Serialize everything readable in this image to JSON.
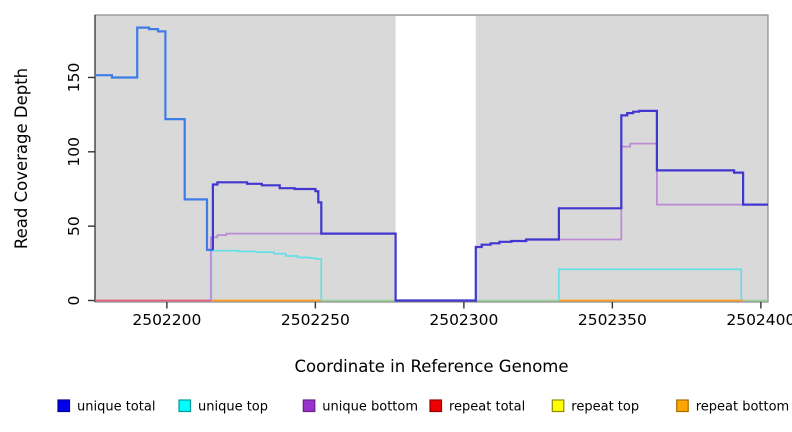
{
  "chart_data": {
    "type": "line",
    "subtype": "step-coverage-plot",
    "title": "",
    "xlabel": "Coordinate in Reference Genome",
    "ylabel": "Read Coverage Depth",
    "xlim": [
      2502175.8,
      2502402.4
    ],
    "ylim": [
      0,
      192
    ],
    "x_ticks": [
      2502200,
      2502250,
      2502300,
      2502350,
      2502400
    ],
    "x_tick_labels": [
      "2502200",
      "2502250",
      "2502300",
      "2502350",
      "2502400"
    ],
    "y_ticks": [
      0,
      50,
      100,
      150
    ],
    "y_tick_labels": [
      "0",
      "50",
      "100",
      "150"
    ],
    "grid": false,
    "figure_background": "#ffffff",
    "plot_background": "#d9d9d9",
    "box_color": "#8a8a8a",
    "axis_color": "#333333",
    "tick_color": "#333333",
    "masked_region": {
      "x_start": 2502277,
      "x_end": 2502304,
      "color": "#ffffff"
    },
    "series": [
      {
        "name": "repeat-total-zero",
        "legend": "repeat total",
        "color": "#e25e7e",
        "width": 1.8,
        "points": [
          [
            2502175.8,
            0
          ],
          [
            2502215,
            0
          ]
        ]
      },
      {
        "name": "repeat-bottom-zero-a",
        "legend": "repeat bottom",
        "color": "#ff9c20",
        "width": 1.8,
        "points": [
          [
            2502215,
            0
          ],
          [
            2502252,
            0
          ]
        ]
      },
      {
        "name": "zero-overlap-a",
        "legend": "",
        "color": "#95d295",
        "width": 1.6,
        "points": [
          [
            2502252,
            0
          ],
          [
            2502277,
            0
          ]
        ]
      },
      {
        "name": "zero-overlap-b",
        "legend": "",
        "color": "#95d295",
        "width": 1.6,
        "points": [
          [
            2502304,
            0
          ],
          [
            2502332,
            0
          ]
        ]
      },
      {
        "name": "repeat-bottom-zero-b",
        "legend": "repeat bottom",
        "color": "#ff9c20",
        "width": 1.8,
        "points": [
          [
            2502332,
            0
          ],
          [
            2502394,
            0
          ]
        ]
      },
      {
        "name": "zero-overlap-c",
        "legend": "",
        "color": "#95d295",
        "width": 1.6,
        "points": [
          [
            2502394,
            0
          ],
          [
            2502402.4,
            0
          ]
        ]
      },
      {
        "name": "unique-top-left",
        "legend": "unique top",
        "color": "#5fe0e8",
        "width": 1.6,
        "points": [
          [
            2502215,
            0
          ],
          [
            2502215,
            33.5
          ],
          [
            2502224,
            33
          ],
          [
            2502230,
            32.5
          ],
          [
            2502236,
            31.5
          ],
          [
            2502240,
            30
          ],
          [
            2502244,
            29
          ],
          [
            2502248,
            28.5
          ],
          [
            2502250,
            28
          ],
          [
            2502252,
            0
          ]
        ]
      },
      {
        "name": "unique-top-right",
        "legend": "unique top",
        "color": "#5fe0e8",
        "width": 1.6,
        "points": [
          [
            2502332,
            0
          ],
          [
            2502332,
            21
          ],
          [
            2502393.4,
            0
          ]
        ]
      },
      {
        "name": "unique-bottom",
        "legend": "unique bottom",
        "color": "#ba8ad5",
        "width": 1.7,
        "points": [
          [
            2502214.8,
            0
          ],
          [
            2502214.8,
            42.5
          ],
          [
            2502217,
            44
          ],
          [
            2502220,
            45
          ],
          [
            2502277,
            0
          ],
          [
            2502304,
            36
          ],
          [
            2502306,
            37.5
          ],
          [
            2502309,
            38.5
          ],
          [
            2502312,
            39.5
          ],
          [
            2502316,
            40
          ],
          [
            2502321,
            41
          ],
          [
            2502353,
            103.5
          ],
          [
            2502356,
            105.5
          ],
          [
            2502365,
            64.5
          ],
          [
            2502402.4,
            64.5
          ]
        ]
      },
      {
        "name": "unique-total-left",
        "legend": "unique total",
        "color": "#3e7ce8",
        "width": 2.2,
        "points": [
          [
            2502175.8,
            151.5
          ],
          [
            2502181.5,
            150
          ],
          [
            2502190,
            183.5
          ],
          [
            2502194,
            182.5
          ],
          [
            2502197,
            181
          ],
          [
            2502199.5,
            122
          ],
          [
            2502206,
            68
          ],
          [
            2502213.5,
            34
          ],
          [
            2502215.5,
            34
          ]
        ]
      },
      {
        "name": "unique-total-main",
        "legend": "unique total",
        "color": "#4136d0",
        "width": 2.2,
        "points": [
          [
            2502215.5,
            34
          ],
          [
            2502215.5,
            78
          ],
          [
            2502217,
            79.5
          ],
          [
            2502227,
            78.5
          ],
          [
            2502232,
            77.5
          ],
          [
            2502238,
            75.5
          ],
          [
            2502243,
            75
          ],
          [
            2502250,
            73.5
          ],
          [
            2502251,
            66
          ],
          [
            2502252,
            45
          ],
          [
            2502277,
            0
          ],
          [
            2502304,
            36
          ],
          [
            2502306,
            37.5
          ],
          [
            2502309,
            38.5
          ],
          [
            2502312,
            39.5
          ],
          [
            2502316,
            40
          ],
          [
            2502321,
            41
          ],
          [
            2502332,
            62
          ],
          [
            2502353,
            124.5
          ],
          [
            2502355,
            126
          ],
          [
            2502357,
            127
          ],
          [
            2502359,
            127.5
          ],
          [
            2502365,
            87.5
          ],
          [
            2502391,
            86
          ],
          [
            2502394,
            64.5
          ],
          [
            2502402.4,
            64.5
          ]
        ]
      }
    ],
    "legend": {
      "position": "bottom",
      "items": [
        {
          "label": "unique total",
          "fill": "#0000ee",
          "border": "#00009a"
        },
        {
          "label": "unique top",
          "fill": "#00ffff",
          "border": "#009a9a"
        },
        {
          "label": "unique bottom",
          "fill": "#9933cc",
          "border": "#66208a"
        },
        {
          "label": "repeat total",
          "fill": "#ee0000",
          "border": "#990000"
        },
        {
          "label": "repeat top",
          "fill": "#ffff00",
          "border": "#8b8b00"
        },
        {
          "label": "repeat bottom",
          "fill": "#ffa500",
          "border": "#a56a00"
        }
      ]
    }
  }
}
